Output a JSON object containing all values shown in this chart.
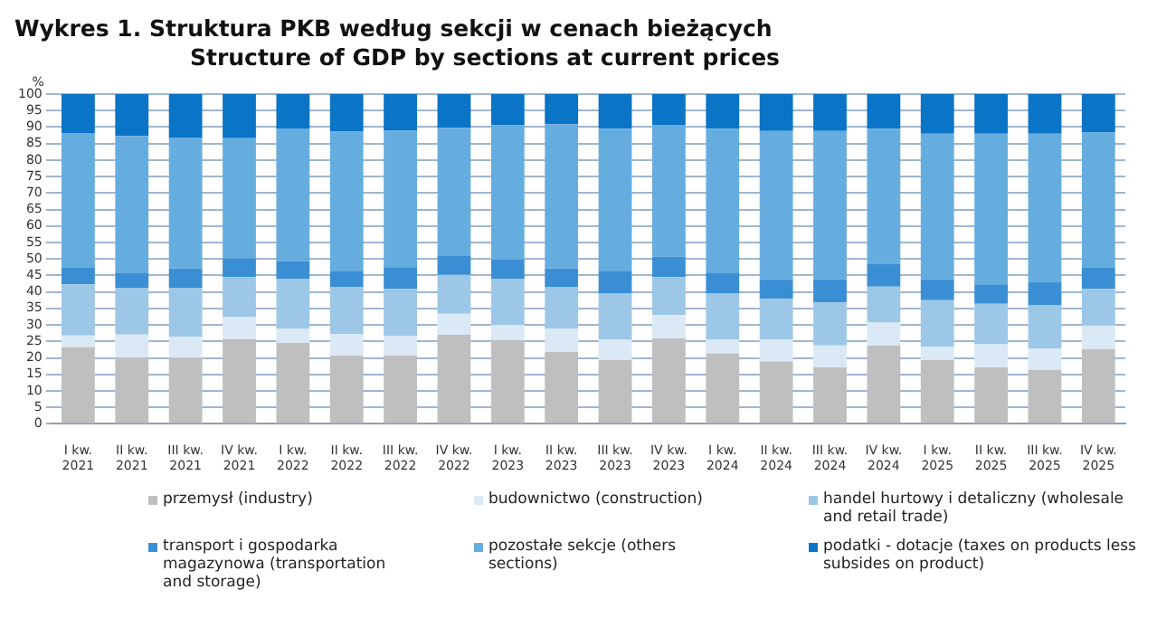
{
  "chart_data": {
    "type": "bar",
    "stacked": true,
    "title": "Wykres 1. Struktura PKB według sekcji w cenach bieżących",
    "subtitle": "Structure of GDP by sections at current prices",
    "ylabel": "%",
    "categories": [
      "I kw. 2021",
      "II kw. 2021",
      "III kw. 2021",
      "IV kw. 2021",
      "I kw. 2022",
      "II kw. 2022",
      "III kw. 2022",
      "IV kw. 2022",
      "I kw. 2023",
      "II kw. 2023",
      "III kw. 2023",
      "IV kw. 2023",
      "I kw. 2024",
      "II kw. 2024",
      "III kw. 2024",
      "IV kw. 2024",
      "I kw. 2025",
      "II kw. 2025",
      "III kw. 2025",
      "IV kw. 2025"
    ],
    "series": [
      {
        "name": "przemysł (industry)",
        "color": "#bfbfbf",
        "values": [
          23.2,
          20.2,
          20.0,
          25.7,
          24.6,
          20.7,
          20.7,
          27.0,
          25.4,
          21.8,
          19.3,
          25.9,
          21.4,
          18.9,
          17.1,
          23.8,
          19.3,
          17.1,
          16.4,
          22.7
        ]
      },
      {
        "name": "budownictwo (construction)",
        "color": "#dae9f5",
        "values": [
          3.6,
          6.9,
          6.4,
          6.8,
          4.2,
          6.6,
          5.9,
          6.4,
          4.6,
          7.1,
          6.2,
          7.1,
          4.1,
          6.6,
          6.7,
          6.9,
          4.1,
          7.0,
          6.5,
          7.1
        ]
      },
      {
        "name": "handel hurtowy i detaliczny (wholesale and retail trade)",
        "color": "#9dc7e6",
        "values": [
          15.5,
          14.2,
          14.9,
          12.0,
          15.1,
          14.1,
          14.3,
          11.8,
          13.9,
          12.5,
          14.1,
          11.5,
          14.1,
          12.4,
          13.0,
          10.9,
          14.1,
          12.3,
          13.0,
          11.1
        ]
      },
      {
        "name": "transport i gospodarka magazynowa (transportation and storage)",
        "color": "#3a8fd4",
        "values": [
          5.0,
          4.6,
          5.8,
          5.7,
          5.4,
          5.0,
          6.6,
          5.9,
          5.9,
          5.7,
          6.8,
          6.2,
          6.3,
          6.0,
          7.1,
          6.8,
          6.3,
          5.9,
          7.0,
          6.4
        ]
      },
      {
        "name": "pozostałe sekcje (others sections)",
        "color": "#66addf",
        "values": [
          40.9,
          41.4,
          39.7,
          36.4,
          40.3,
          42.2,
          41.4,
          38.7,
          40.7,
          43.8,
          43.1,
          40.0,
          43.6,
          44.9,
          44.9,
          41.1,
          44.2,
          45.7,
          45.1,
          41.1
        ]
      },
      {
        "name": "podatki - dotacje (taxes on products less subsides on product)",
        "color": "#0a74c6",
        "values": [
          11.8,
          12.7,
          13.2,
          13.4,
          10.4,
          11.4,
          11.1,
          10.2,
          9.5,
          9.1,
          10.5,
          9.3,
          10.5,
          11.2,
          11.2,
          10.5,
          12.0,
          12.0,
          12.0,
          11.6
        ]
      }
    ],
    "ylim": [
      0,
      100
    ],
    "yticks": [
      0,
      5,
      10,
      15,
      20,
      25,
      30,
      35,
      40,
      45,
      50,
      55,
      60,
      65,
      70,
      75,
      80,
      85,
      90,
      95,
      100
    ],
    "grid": "y",
    "legend": "bottom"
  }
}
